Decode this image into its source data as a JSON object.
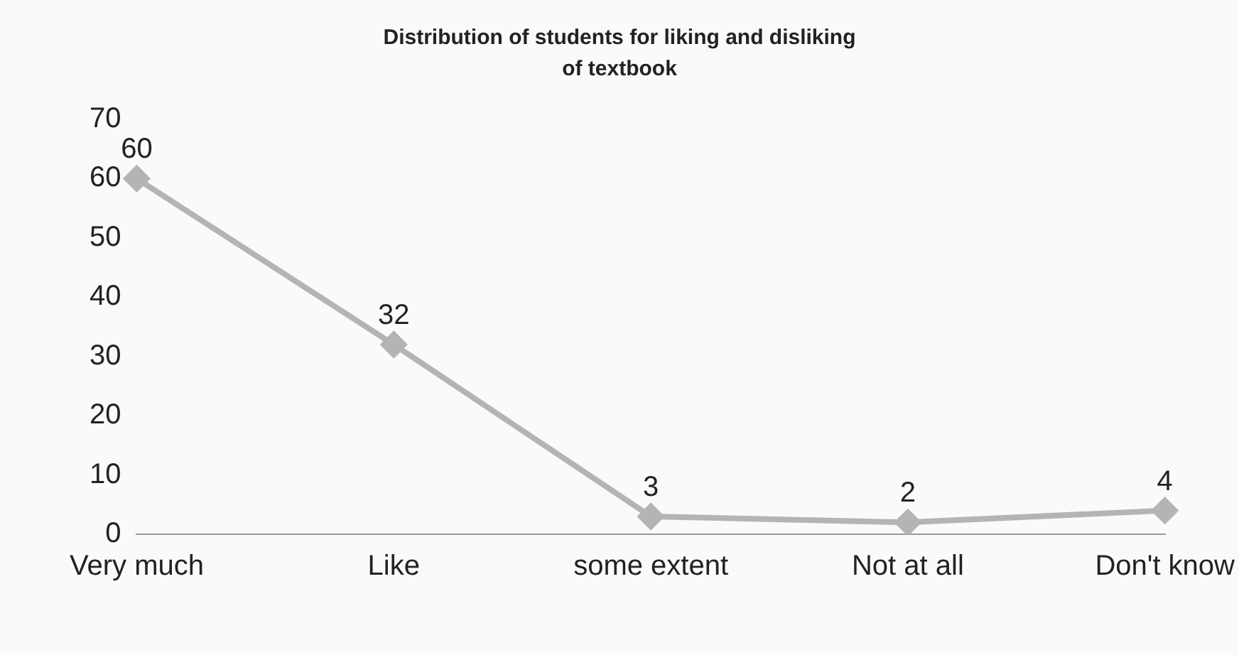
{
  "chart_data": {
    "type": "line",
    "title": "Distribution of students for liking and disliking of textbook",
    "categories": [
      "Very much",
      "Like",
      "some extent",
      "Not at all",
      "Don't know"
    ],
    "values": [
      60,
      32,
      3,
      2,
      4
    ],
    "color": "#b4b4b4",
    "ylim": [
      0,
      70
    ],
    "yticks": [
      0,
      10,
      20,
      30,
      40,
      50,
      60,
      70
    ],
    "grid": false,
    "legend": false,
    "marker": "diamond",
    "line_style": "solid",
    "data_labels": true
  }
}
